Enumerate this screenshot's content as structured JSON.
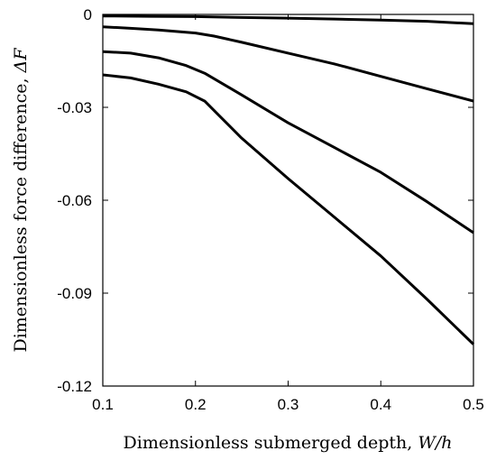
{
  "chart_data": {
    "type": "line",
    "xlabel": "Dimensionless submerged depth, ",
    "xlabel_math": "W/h",
    "ylabel": "Dimensionless force difference, ",
    "ylabel_math": "ΔF",
    "xlim": [
      0.1,
      0.5
    ],
    "ylim": [
      -0.12,
      0
    ],
    "xticks": [
      "0.1",
      "0.2",
      "0.3",
      "0.4",
      "0.5"
    ],
    "yticks": [
      "0",
      "-0.03",
      "-0.06",
      "-0.09",
      "-0.12"
    ],
    "grid": false,
    "legend": "none",
    "line_color": "#000000",
    "series": [
      {
        "x": [
          0.1,
          0.15,
          0.2,
          0.25,
          0.3,
          0.35,
          0.4,
          0.45,
          0.5
        ],
        "y": [
          -0.0005,
          -0.0006,
          -0.0007,
          -0.001,
          -0.0012,
          -0.0015,
          -0.0018,
          -0.0022,
          -0.003
        ]
      },
      {
        "x": [
          0.1,
          0.13,
          0.16,
          0.2,
          0.22,
          0.25,
          0.3,
          0.35,
          0.4,
          0.45,
          0.5
        ],
        "y": [
          -0.004,
          -0.0045,
          -0.005,
          -0.006,
          -0.007,
          -0.009,
          -0.0125,
          -0.016,
          -0.02,
          -0.024,
          -0.028
        ]
      },
      {
        "x": [
          0.1,
          0.13,
          0.16,
          0.19,
          0.21,
          0.25,
          0.3,
          0.35,
          0.4,
          0.45,
          0.5
        ],
        "y": [
          -0.012,
          -0.0125,
          -0.014,
          -0.0165,
          -0.019,
          -0.026,
          -0.035,
          -0.043,
          -0.051,
          -0.0605,
          -0.0705
        ]
      },
      {
        "x": [
          0.1,
          0.13,
          0.16,
          0.19,
          0.21,
          0.25,
          0.3,
          0.35,
          0.4,
          0.45,
          0.5
        ],
        "y": [
          -0.0195,
          -0.0205,
          -0.0225,
          -0.025,
          -0.028,
          -0.04,
          -0.053,
          -0.0655,
          -0.078,
          -0.092,
          -0.1065
        ]
      }
    ]
  }
}
